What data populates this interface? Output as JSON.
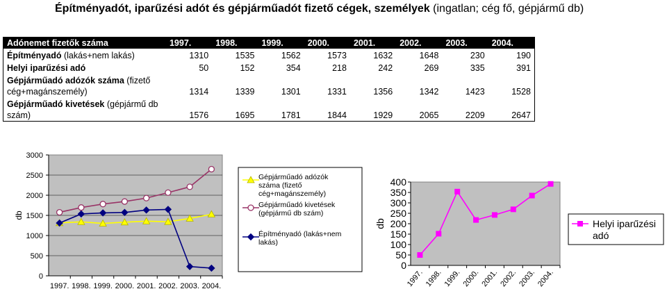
{
  "title": {
    "bold": "Építményadót, iparűzési adót és gépjárműadót fizető cégek, személyek",
    "normal": " (ingatlan; cég fő, gépjármű db)"
  },
  "table": {
    "header": [
      "Adónemet fizetők száma",
      "1997.",
      "1998.",
      "1999.",
      "2000.",
      "2001.",
      "2002.",
      "2003.",
      "2004."
    ],
    "rows": [
      {
        "label_bold": "Építményadó",
        "label_rest": " (lakás+nem lakás)",
        "values": [
          "1310",
          "1535",
          "1562",
          "1573",
          "1632",
          "1648",
          "230",
          "190"
        ]
      },
      {
        "label_bold": "Helyi iparűzési adó",
        "label_rest": "",
        "values": [
          "50",
          "152",
          "354",
          "218",
          "242",
          "269",
          "335",
          "391"
        ]
      },
      {
        "label_bold": "Gépjárműadó adózók száma",
        "label_rest": " (fizető cég+magánszemély)",
        "values": [
          "1314",
          "1339",
          "1301",
          "1331",
          "1356",
          "1342",
          "1423",
          "1528"
        ]
      },
      {
        "label_bold": "Gépjárműadó kivetések",
        "label_rest": " (gépjármű db szám)",
        "values": [
          "1576",
          "1695",
          "1781",
          "1844",
          "1929",
          "2065",
          "2209",
          "2647"
        ]
      }
    ]
  },
  "chart_data": [
    {
      "type": "line",
      "categories": [
        "1997.",
        "1998.",
        "1999.",
        "2000.",
        "2001.",
        "2002.",
        "2003.",
        "2004."
      ],
      "ylabel": "db",
      "ylim": [
        0,
        3000
      ],
      "yticks": [
        "0",
        "500",
        "1000",
        "1500",
        "2000",
        "2500",
        "3000"
      ],
      "legend_position": "right",
      "series": [
        {
          "name": "Gépjárműadó adózók száma (fizető cég+magánszemély)",
          "values": [
            1314,
            1339,
            1301,
            1331,
            1356,
            1342,
            1423,
            1528
          ],
          "color": "#ffff00",
          "marker": "triangle"
        },
        {
          "name": "Gépjárműadó kivetések (gépjármű db szám)",
          "values": [
            1576,
            1695,
            1781,
            1844,
            1929,
            2065,
            2209,
            2647
          ],
          "color": "#993366",
          "marker": "circle"
        },
        {
          "name": "Építményadó (lakás+nem lakás)",
          "values": [
            1310,
            1535,
            1562,
            1573,
            1632,
            1648,
            230,
            190
          ],
          "color": "#000080",
          "marker": "diamond"
        }
      ]
    },
    {
      "type": "line",
      "categories": [
        "1997.",
        "1998.",
        "1999.",
        "2000.",
        "2001.",
        "2002.",
        "2003.",
        "2004."
      ],
      "ylabel": "db",
      "ylim": [
        0,
        400
      ],
      "yticks": [
        "0",
        "50",
        "100",
        "150",
        "200",
        "250",
        "300",
        "350",
        "400"
      ],
      "legend_position": "right",
      "series": [
        {
          "name": "Helyi iparűzési adó",
          "values": [
            50,
            152,
            354,
            218,
            242,
            269,
            335,
            391
          ],
          "color": "#ff00ff",
          "marker": "square"
        }
      ]
    }
  ]
}
